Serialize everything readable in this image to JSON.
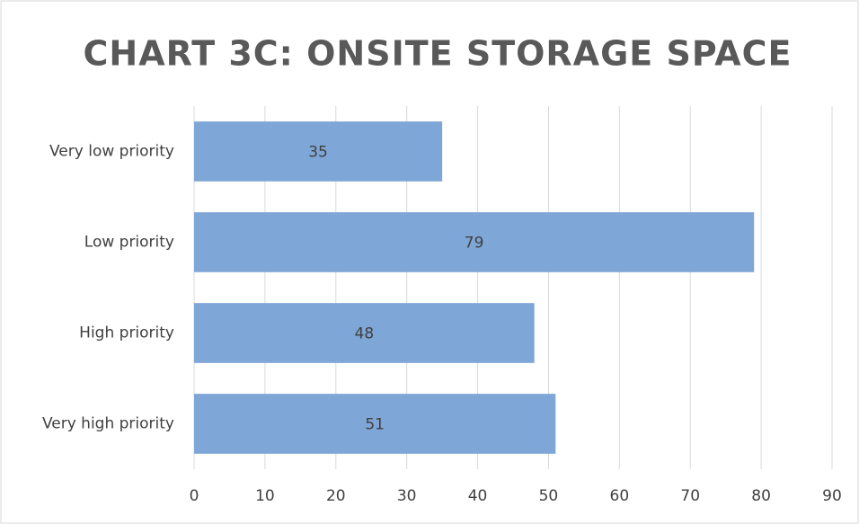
{
  "chart_data": {
    "type": "bar",
    "orientation": "horizontal",
    "title": "CHART 3C: ONSITE STORAGE SPACE",
    "categories": [
      "Very low priority",
      "Low priority",
      "High priority",
      "Very high priority"
    ],
    "values": [
      35,
      79,
      48,
      51
    ],
    "color": "#7ea6d6",
    "xlim": [
      0,
      90
    ],
    "xticks": [
      0,
      10,
      20,
      30,
      40,
      50,
      60,
      70,
      80,
      90
    ],
    "grid": true
  }
}
